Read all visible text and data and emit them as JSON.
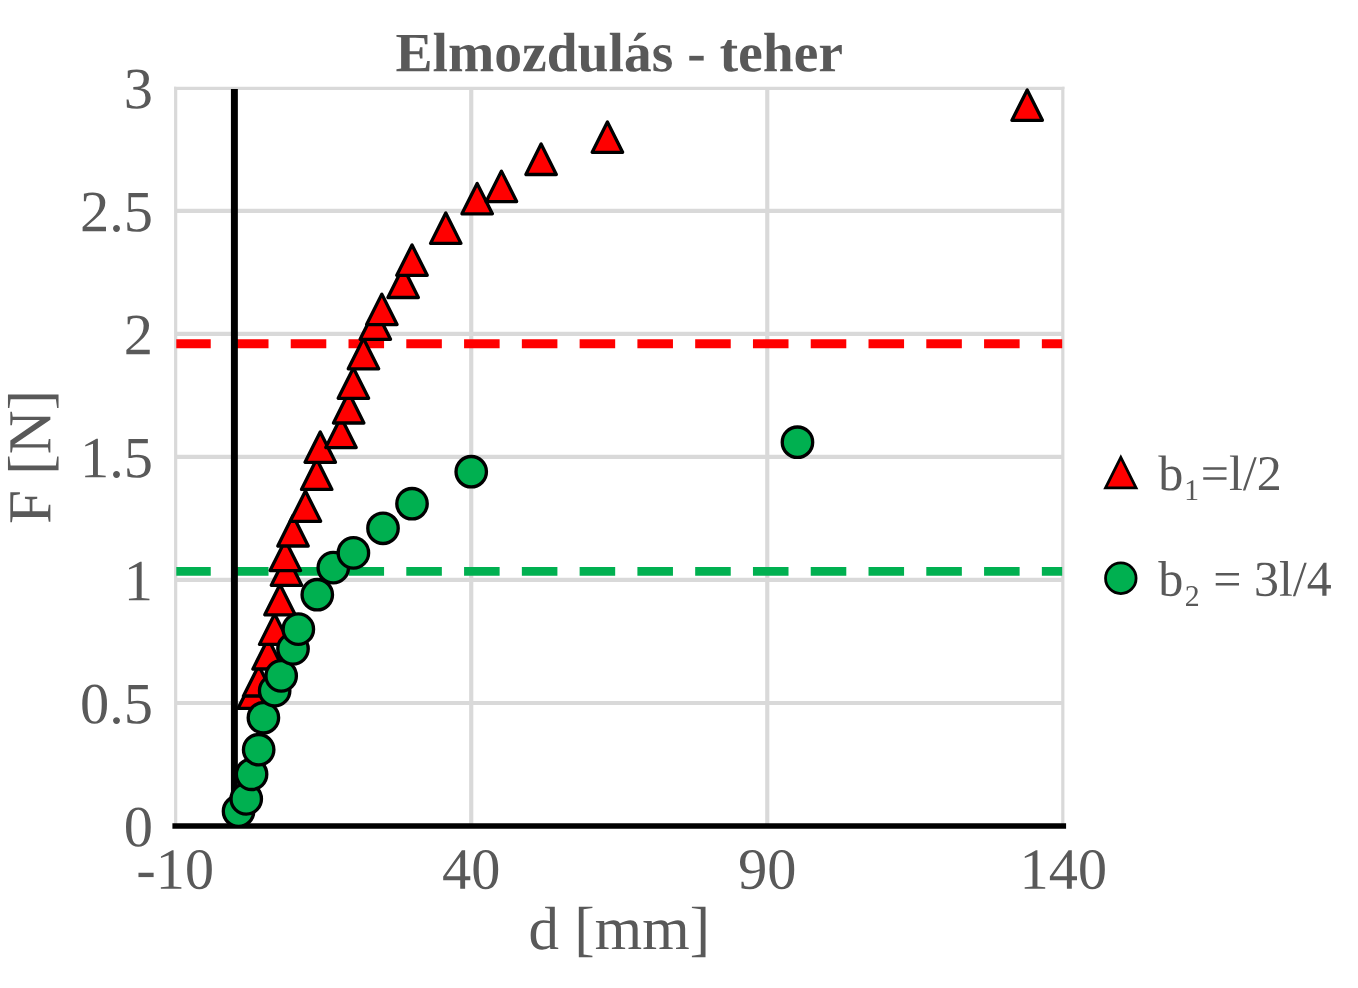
{
  "chart_data": {
    "type": "scatter",
    "title": "Elmozdulás - teher",
    "xlabel": "d [mm]",
    "ylabel": "F [N]",
    "xlim": [
      -10,
      140
    ],
    "xticks": [
      -10,
      40,
      90,
      140
    ],
    "ylim": [
      0,
      3
    ],
    "yticks": [
      0,
      0.5,
      1,
      1.5,
      2,
      2.5,
      3
    ],
    "grid": true,
    "legend": "right",
    "series": [
      {
        "name": "b₁=l/2",
        "color": "#ff0000",
        "marker": "triangle",
        "x": [
          3.2,
          4.1,
          5.7,
          6.8,
          7.7,
          8.8,
          8.6,
          9.9,
          12.0,
          13.9,
          14.5,
          18.0,
          19.3,
          20.1,
          21.8,
          23.8,
          24.9,
          28.5,
          30.0,
          35.7,
          41.0,
          45.1,
          51.8,
          63.0,
          133.9
        ],
        "values": [
          0.54,
          0.59,
          0.7,
          0.8,
          0.92,
          1.04,
          1.1,
          1.2,
          1.3,
          1.43,
          1.54,
          1.6,
          1.7,
          1.8,
          1.92,
          2.04,
          2.1,
          2.21,
          2.3,
          2.43,
          2.55,
          2.6,
          2.71,
          2.8,
          2.93
        ]
      },
      {
        "name": "b₂ = 3l/4",
        "color": "#00b050",
        "marker": "circle",
        "x": [
          0.7,
          2.0,
          2.9,
          4.1,
          4.9,
          6.8,
          7.9,
          9.9,
          10.8,
          14.0,
          16.7,
          20.1,
          25.1,
          30.0,
          40.0,
          95.1
        ],
        "values": [
          0.06,
          0.11,
          0.21,
          0.31,
          0.44,
          0.55,
          0.61,
          0.72,
          0.8,
          0.94,
          1.05,
          1.11,
          1.21,
          1.31,
          1.44,
          1.56
        ]
      }
    ],
    "ref_lines": [
      {
        "axis": "y",
        "value": 1.96,
        "color": "#ff0000",
        "line_style": "dashed"
      },
      {
        "axis": "y",
        "value": 1.035,
        "color": "#00b050",
        "line_style": "dashed"
      },
      {
        "axis": "x",
        "value": 0,
        "color": "#000000",
        "line_style": "solid"
      }
    ]
  }
}
